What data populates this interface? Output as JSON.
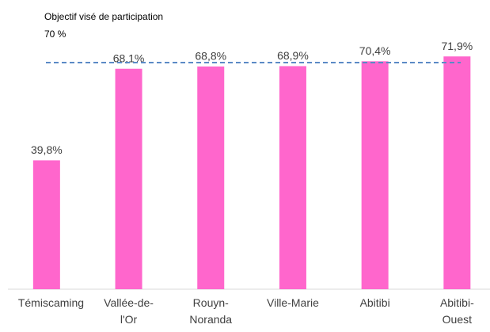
{
  "chart_data": {
    "type": "bar",
    "annotation": "Objectif visé de participation",
    "target_label": "70 %",
    "target": 70,
    "categories": [
      "Témiscaming",
      "Vallée-de-l'Or",
      "Rouyn-Noranda",
      "Ville-Marie",
      "Abitibi",
      "Abitibi-Ouest"
    ],
    "values": [
      39.8,
      68.1,
      68.8,
      68.9,
      70.4,
      71.9
    ],
    "value_labels": [
      "39,8%",
      "68,1%",
      "68,8%",
      "68,9%",
      "70,4%",
      "71,9%"
    ],
    "color": "#ff66cc",
    "target_color": "#5b8ac6"
  }
}
